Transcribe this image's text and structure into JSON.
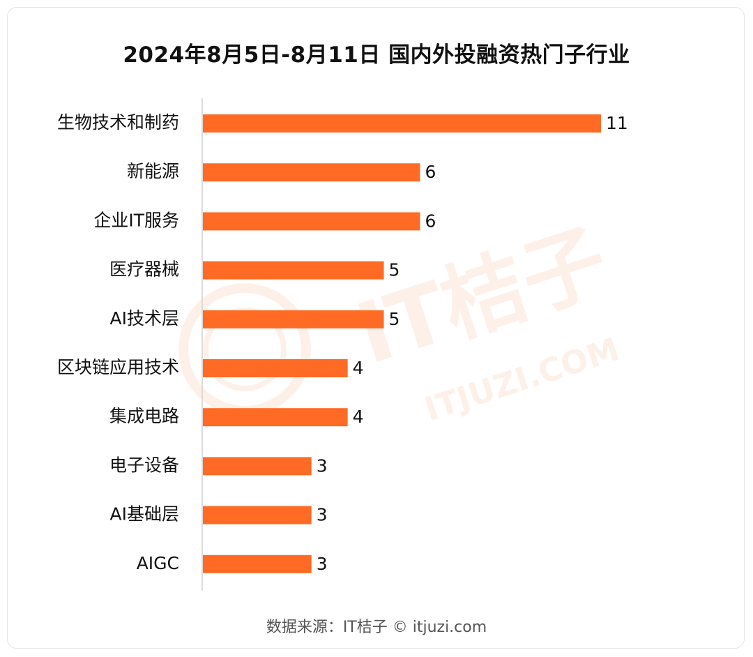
{
  "title": "2024年8月5日-8月11日 国内外投融资热门子行业",
  "source": "数据来源：IT桔子 © itjuzi.com",
  "watermark": {
    "text_main": "IT桔子",
    "text_url": "ITJUZI.COM"
  },
  "colors": {
    "bar": "#ff6a24",
    "axis": "#d0d0d0",
    "watermark": "#fbe3d8"
  },
  "chart_data": {
    "type": "bar",
    "orientation": "horizontal",
    "title": "2024年8月5日-8月11日 国内外投融资热门子行业",
    "categories": [
      "生物技术和制药",
      "新能源",
      "企业IT服务",
      "医疗器械",
      "AI技术层",
      "区块链应用技术",
      "集成电路",
      "电子设备",
      "AI基础层",
      "AIGC"
    ],
    "values": [
      11,
      6,
      6,
      5,
      5,
      4,
      4,
      3,
      3,
      3
    ],
    "xlim": [
      0,
      11
    ],
    "grid": false,
    "data_labels": true
  }
}
